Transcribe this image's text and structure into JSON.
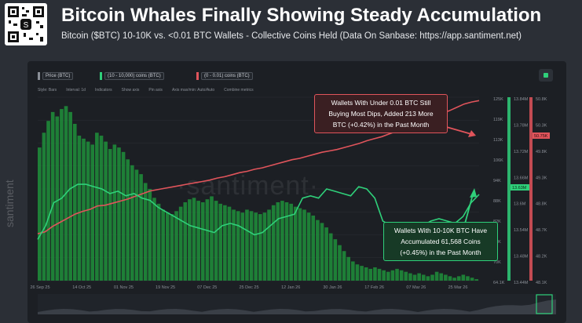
{
  "header": {
    "title": "Bitcoin Whales Finally Showing Steady Accumulation",
    "subtitle": "Bitcoin ($BTC) 10-10K vs. <0.01 BTC Wallets - Collective Coins Held (Data On Sanbase: https://app.santiment.net)"
  },
  "legend": [
    {
      "label": "Price (BTC)",
      "color": "#1a1d22"
    },
    {
      "label": "(10 - 10,000) coins (BTC)",
      "color": "#2fd07a"
    },
    {
      "label": "(0 - 0.01) coins (BTC)",
      "color": "#e0545b"
    }
  ],
  "toolbar": [
    "Style: Bars",
    "Interval: 1d",
    "Indicators",
    "Show axis",
    "Pin axis",
    "Axis max/min: Auto/Auto",
    "Combine metrics"
  ],
  "watermark": "·santiment·",
  "side_brand": "santiment",
  "callouts": {
    "red": [
      "Wallets With Under 0.01 BTC Still",
      "Buying Most Dips, Added 213 More",
      "BTC (+0.42%) in the Past Month"
    ],
    "green": [
      "Wallets With 10-10K BTC Have",
      "Accumulated 61,568 Coins",
      "(+0.45%) in the Past Month"
    ]
  },
  "colors": {
    "green": "#2fd07a",
    "red": "#e0545b",
    "bar": "#1f8a3a"
  },
  "chart_data": {
    "type": "bar",
    "title": "Bitcoin Whales Finally Showing Steady Accumulation",
    "x_ticks": [
      "26 Sep 25",
      "14 Oct 25",
      "01 Nov 25",
      "19 Nov 25",
      "07 Dec 25",
      "25 Dec 25",
      "12 Jan 26",
      "30 Jan 26",
      "17 Feb 26",
      "07 Mar 26",
      "25 Mar 26"
    ],
    "axis_price": {
      "ticks": [
        "125K",
        "119K",
        "113K",
        "106K",
        "94K",
        "88K",
        "82K",
        "76K",
        "70K",
        "64.1K"
      ],
      "ylim": [
        64000,
        126000
      ]
    },
    "axis_whale": {
      "ticks": [
        "13.84M",
        "13.78M",
        "13.72M",
        "13.66M",
        "13.6M",
        "13.54M",
        "13.48M",
        "13.44M"
      ],
      "ylim": [
        13440000,
        13840000
      ],
      "highlight": "13.63M"
    },
    "axis_small": {
      "ticks": [
        "50.8K",
        "50.3K",
        "49.8K",
        "49.3K",
        "48.8K",
        "48.7K",
        "48.2K",
        "48.1K"
      ],
      "ylim": [
        48100,
        50800
      ],
      "highlight": "50.75K"
    },
    "series": [
      {
        "name": "Price (BTC)",
        "style": "bars",
        "values": [
          109000,
          114000,
          118000,
          121000,
          119500,
          122000,
          123000,
          121000,
          117000,
          113000,
          112000,
          111000,
          110000,
          114000,
          113000,
          111000,
          108500,
          110000,
          109000,
          107500,
          105000,
          103000,
          101500,
          100000,
          97000,
          95000,
          92000,
          90000,
          88000,
          87000,
          86500,
          87500,
          89000,
          90500,
          91500,
          92000,
          91000,
          90500,
          91500,
          92500,
          91000,
          90000,
          89500,
          89000,
          88000,
          87500,
          87000,
          88000,
          87500,
          87000,
          86500,
          87000,
          88000,
          89500,
          90500,
          91000,
          90500,
          90000,
          89000,
          88500,
          88000,
          87000,
          86000,
          84500,
          83500,
          82000,
          80000,
          78000,
          76000,
          74000,
          72000,
          70500,
          69500,
          69000,
          68500,
          68000,
          68500,
          68000,
          67500,
          67000,
          67500,
          68000,
          67500,
          67000,
          66500,
          66000,
          66500,
          66000,
          65500,
          66000,
          67000,
          66500,
          66000,
          65500,
          65000,
          65500,
          66000,
          65500,
          65000,
          64500
        ]
      },
      {
        "name": "(10 - 10,000) coins (BTC)",
        "style": "line",
        "values": [
          13530000,
          13560000,
          13610000,
          13620000,
          13640000,
          13650000,
          13650000,
          13645000,
          13640000,
          13630000,
          13635000,
          13625000,
          13630000,
          13620000,
          13615000,
          13600000,
          13590000,
          13580000,
          13570000,
          13560000,
          13555000,
          13550000,
          13545000,
          13560000,
          13565000,
          13560000,
          13550000,
          13540000,
          13545000,
          13560000,
          13575000,
          13580000,
          13585000,
          13620000,
          13625000,
          13620000,
          13640000,
          13635000,
          13630000,
          13625000,
          13645000,
          13640000,
          13620000,
          13570000,
          13560000,
          13555000,
          13545000,
          13550000,
          13560000,
          13570000,
          13575000,
          13570000,
          13565000,
          13580000,
          13610000,
          13628000
        ]
      },
      {
        "name": "(0 - 0.01) coins (BTC)",
        "style": "line",
        "values": [
          48790,
          48820,
          48900,
          48960,
          49020,
          49080,
          49120,
          49150,
          49200,
          49210,
          49240,
          49270,
          49300,
          49340,
          49380,
          49420,
          49440,
          49460,
          49480,
          49500,
          49520,
          49540,
          49560,
          49580,
          49610,
          49630,
          49660,
          49690,
          49710,
          49740,
          49760,
          49790,
          49820,
          49850,
          49880,
          49900,
          49930,
          49960,
          49990,
          50010,
          50030,
          50060,
          50090,
          50120,
          50160,
          50190,
          50220,
          50260,
          50300,
          50340,
          50380,
          50420,
          50460,
          50510,
          50560,
          50600,
          50650,
          50700,
          50730,
          50750
        ]
      }
    ]
  }
}
